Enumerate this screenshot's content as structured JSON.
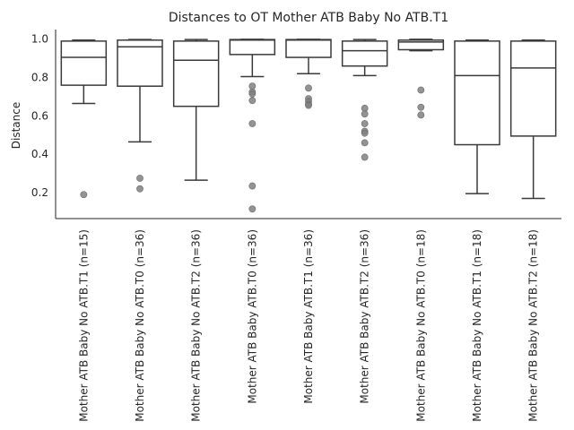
{
  "chart_data": {
    "type": "box",
    "title": "Distances to OT Mother ATB Baby No ATB.T1",
    "xlabel": "",
    "ylabel": "Distance",
    "ylim": [
      0.065,
      1.05
    ],
    "yticks": [
      "0.2",
      "0.4",
      "0.6",
      "0.8",
      "1.0"
    ],
    "ytick_values": [
      0.2,
      0.4,
      0.6,
      0.8,
      1.0
    ],
    "grid": false,
    "box_color": "#ffffff",
    "line_color": "#3a3a3a",
    "outlier_color": "#808080",
    "categories": [
      "Mother ATB Baby No ATB.T1 (n=15)",
      "Mother ATB Baby No ATB.T0 (n=36)",
      "Mother ATB Baby No ATB.T2 (n=36)",
      "Mother ATB Baby ATB.T0 (n=36)",
      "Mother ATB Baby ATB.T1 (n=36)",
      "Mother ATB Baby ATB.T2 (n=36)",
      "Mother ATB Baby No ATB.T0 (n=18)",
      "Mother ATB Baby No ATB.T1 (n=18)",
      "Mother ATB Baby No ATB.T2 (n=18)"
    ],
    "boxes": [
      {
        "whislo": 0.665,
        "q1": 0.76,
        "med": 0.905,
        "q3": 0.99,
        "whishi": 0.995,
        "fliers": [
          0.19
        ]
      },
      {
        "whislo": 0.465,
        "q1": 0.755,
        "med": 0.96,
        "q3": 0.995,
        "whishi": 0.998,
        "fliers": [
          0.275,
          0.22
        ]
      },
      {
        "whislo": 0.265,
        "q1": 0.65,
        "med": 0.89,
        "q3": 0.99,
        "whishi": 0.998,
        "fliers": []
      },
      {
        "whislo": 0.805,
        "q1": 0.92,
        "med": 0.995,
        "q3": 0.998,
        "whishi": 0.999,
        "fliers": [
          0.755,
          0.725,
          0.715,
          0.68,
          0.56,
          0.235,
          0.115
        ]
      },
      {
        "whislo": 0.82,
        "q1": 0.905,
        "med": 0.995,
        "q3": 0.998,
        "whishi": 0.999,
        "fliers": [
          0.745,
          0.69,
          0.675,
          0.66,
          0.655
        ]
      },
      {
        "whislo": 0.81,
        "q1": 0.86,
        "med": 0.94,
        "q3": 0.99,
        "whishi": 0.998,
        "fliers": [
          0.64,
          0.61,
          0.56,
          0.52,
          0.51,
          0.46,
          0.385
        ]
      },
      {
        "whislo": 0.94,
        "q1": 0.945,
        "med": 0.985,
        "q3": 0.995,
        "whishi": 0.999,
        "fliers": [
          0.735,
          0.645,
          0.605
        ]
      },
      {
        "whislo": 0.195,
        "q1": 0.45,
        "med": 0.81,
        "q3": 0.99,
        "whishi": 0.995,
        "fliers": []
      },
      {
        "whislo": 0.17,
        "q1": 0.495,
        "med": 0.85,
        "q3": 0.99,
        "whishi": 0.995,
        "fliers": []
      }
    ]
  }
}
